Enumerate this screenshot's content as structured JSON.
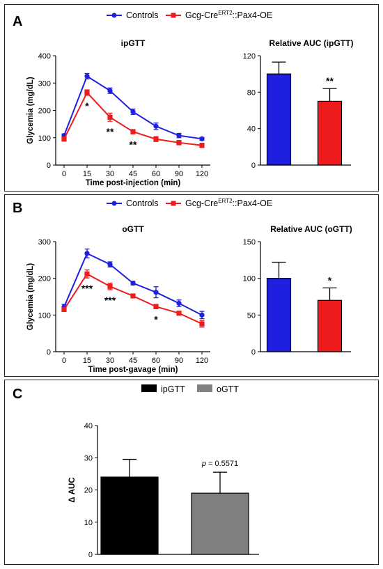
{
  "colors": {
    "controls": "#1f1fe0",
    "pax4": "#ee1c1c",
    "ipgtt": "#000000",
    "ogtt": "#808080"
  },
  "chart_data": [
    {
      "panel": "A",
      "type": "line",
      "title": "ipGTT",
      "xlabel": "Time post-injection (min)",
      "ylabel": "Glycemia (mg/dL)",
      "categories": [
        "0",
        "15",
        "30",
        "45",
        "60",
        "90",
        "120"
      ],
      "ylim": [
        0,
        400
      ],
      "yticks": [
        "0",
        "100",
        "200",
        "300",
        "400"
      ],
      "legend": "top",
      "legend_entries": [
        {
          "prefix": "Controls",
          "sup": "",
          "suffix": ""
        },
        {
          "prefix": "Gcg-Cre",
          "sup": "ERT2",
          "suffix": "::Pax4-OE"
        }
      ],
      "series": [
        {
          "name": "Controls",
          "color": "#1f1fe0",
          "values": [
            108,
            325,
            272,
            195,
            142,
            108,
            96
          ],
          "err": [
            6,
            10,
            10,
            10,
            12,
            8,
            5
          ]
        },
        {
          "name": "Gcg-CreERT2::Pax4-OE",
          "color": "#ee1c1c",
          "values": [
            95,
            265,
            175,
            122,
            95,
            82,
            72
          ],
          "err": [
            5,
            10,
            15,
            8,
            9,
            8,
            8
          ]
        }
      ],
      "significance": [
        {
          "x": "15",
          "label": "*"
        },
        {
          "x": "30",
          "label": "**"
        },
        {
          "x": "45",
          "label": "**"
        }
      ]
    },
    {
      "panel": "A",
      "type": "bar",
      "title": "Relative AUC (ipGTT)",
      "categories": [
        "Controls",
        "Gcg-CreERT2::Pax4-OE"
      ],
      "values": [
        100,
        70
      ],
      "err": [
        13,
        14
      ],
      "colors": [
        "#1f1fe0",
        "#ee1c1c"
      ],
      "ylim": [
        0,
        120
      ],
      "yticks": [
        "0",
        "40",
        "80",
        "120"
      ],
      "significance": [
        {
          "bar": 1,
          "label": "**"
        }
      ]
    },
    {
      "panel": "B",
      "type": "line",
      "title": "oGTT",
      "xlabel": "Time post-gavage (min)",
      "ylabel": "Glycemia (mg/dL)",
      "categories": [
        "0",
        "15",
        "30",
        "45",
        "60",
        "90",
        "120"
      ],
      "ylim": [
        0,
        300
      ],
      "yticks": [
        "0",
        "100",
        "200",
        "300"
      ],
      "legend": "top",
      "legend_entries": [
        {
          "prefix": "Controls",
          "sup": "",
          "suffix": ""
        },
        {
          "prefix": "Gcg-Cre",
          "sup": "ERT2",
          "suffix": "::Pax4-OE"
        }
      ],
      "series": [
        {
          "name": "Controls",
          "color": "#1f1fe0",
          "values": [
            122,
            268,
            238,
            187,
            162,
            132,
            100
          ],
          "err": [
            7,
            12,
            7,
            5,
            15,
            9,
            10
          ]
        },
        {
          "name": "Gcg-CreERT2::Pax4-OE",
          "color": "#ee1c1c",
          "values": [
            115,
            212,
            178,
            152,
            123,
            105,
            76
          ],
          "err": [
            5,
            11,
            9,
            5,
            6,
            5,
            9
          ]
        }
      ],
      "significance": [
        {
          "x": "15",
          "label": "***"
        },
        {
          "x": "30",
          "label": "***"
        },
        {
          "x": "60",
          "label": "*"
        }
      ]
    },
    {
      "panel": "B",
      "type": "bar",
      "title": "Relative AUC (oGTT)",
      "categories": [
        "Controls",
        "Gcg-CreERT2::Pax4-OE"
      ],
      "values": [
        100,
        70
      ],
      "err": [
        22,
        17
      ],
      "colors": [
        "#1f1fe0",
        "#ee1c1c"
      ],
      "ylim": [
        0,
        150
      ],
      "yticks": [
        "0",
        "50",
        "100",
        "150"
      ],
      "significance": [
        {
          "bar": 1,
          "label": "*"
        }
      ]
    },
    {
      "panel": "C",
      "type": "bar",
      "ylabel": "Δ AUC",
      "categories": [
        "ipGTT",
        "oGTT"
      ],
      "values": [
        24,
        19
      ],
      "err": [
        5.5,
        6.5
      ],
      "colors": [
        "#000000",
        "#808080"
      ],
      "ylim": [
        0,
        40
      ],
      "yticks": [
        "0",
        "10",
        "20",
        "30",
        "40"
      ],
      "legend": "top",
      "legend_entries": [
        "ipGTT",
        "oGTT"
      ],
      "pvalue_label": {
        "p": "p",
        "rest": " = 0.5571"
      }
    }
  ],
  "panel_labels": [
    "A",
    "B",
    "C"
  ]
}
